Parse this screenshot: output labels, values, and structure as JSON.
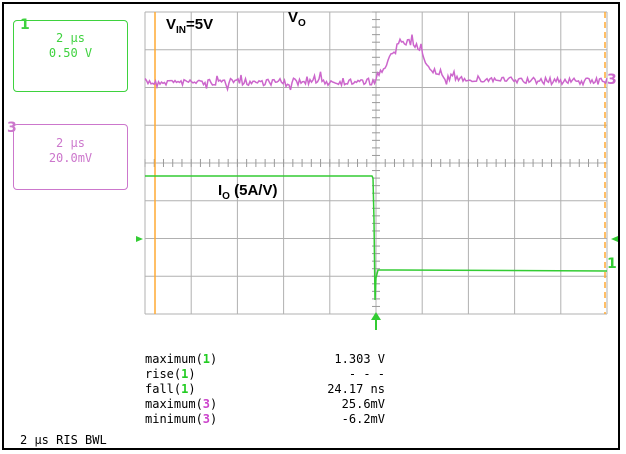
{
  "ch1": {
    "marker": "1",
    "timebase": "2 µs",
    "scale": "0.50 V",
    "color": "#3ed23e"
  },
  "ch3": {
    "marker": "3",
    "timebase": "2 µs",
    "scale": "20.0mV",
    "color": "#cc77cc"
  },
  "annotations": {
    "vin_main": "V",
    "vin_sub": "IN",
    "vin_rest": "=5V",
    "vo_main": "V",
    "vo_sub": "O",
    "io_main": "I",
    "io_sub": "O",
    "io_rest": " (5A/V)"
  },
  "trace_labels": {
    "ch3": "3",
    "ch1": "1"
  },
  "measurements": [
    {
      "name": "maximum(",
      "ch": "1",
      "close": ")",
      "value": "1.303 V",
      "color": "green"
    },
    {
      "name": "rise(",
      "ch": "1",
      "close": ")",
      "value": "- - -",
      "color": "green"
    },
    {
      "name": "fall(",
      "ch": "1",
      "close": ")",
      "value": "24.17 ns",
      "color": "green"
    },
    {
      "name": "maximum(",
      "ch": "3",
      "close": ")",
      "value": "25.6mV",
      "color": "magenta"
    },
    {
      "name": "minimum(",
      "ch": "3",
      "close": ")",
      "value": "-6.2mV",
      "color": "magenta"
    }
  ],
  "footer": "2 µs RIS BWL",
  "colors": {
    "grid": "#b0b0b0",
    "ch1": "#33cc33",
    "ch3": "#cc66cc",
    "cursor": "#ffaa33"
  }
}
